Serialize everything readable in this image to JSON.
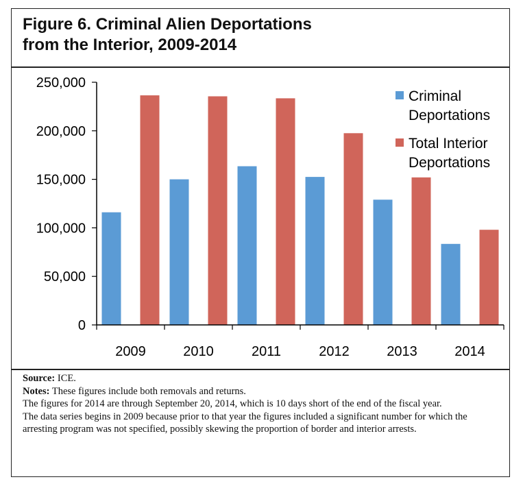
{
  "figure": {
    "title_line1": "Figure 6. Criminal Alien Deportations",
    "title_line2": "from the Interior, 2009-2014"
  },
  "notes": {
    "source_label": "Source:",
    "source_text": "ICE.",
    "notes_label": "Notes:",
    "notes_text": "These figures include both removals and returns.",
    "line2": "The figures for 2014 are through September 20, 2014, which is 10 days short of the end of the fiscal year.",
    "line3": "The data series begins in 2009 because prior to that year the figures included a significant number for which the arresting program was not specified, possibly skewing the proportion of border and interior arrests."
  },
  "colors": {
    "criminal": "#5b9bd5",
    "total": "#d0655a",
    "axis": "#000000"
  },
  "chart_data": {
    "type": "bar",
    "title": "Figure 6. Criminal Alien Deportations from the Interior, 2009-2014",
    "xlabel": "",
    "ylabel": "",
    "categories": [
      "2009",
      "2010",
      "2011",
      "2012",
      "2013",
      "2014"
    ],
    "series": [
      {
        "name": "Criminal Deportations",
        "legend_lines": [
          "Criminal",
          "Deportations"
        ],
        "color": "#5b9bd5",
        "values": [
          116000,
          150000,
          163500,
          152500,
          129000,
          83500
        ]
      },
      {
        "name": "Total Interior Deportations",
        "legend_lines": [
          "Total Interior",
          "Deportations"
        ],
        "color": "#d0655a",
        "values": [
          236500,
          235500,
          233500,
          197500,
          152000,
          98000
        ]
      }
    ],
    "ylim": [
      0,
      250000
    ],
    "yticks": [
      0,
      50000,
      100000,
      150000,
      200000,
      250000
    ],
    "ytick_labels": [
      "0",
      "50,000",
      "100,000",
      "150,000",
      "200,000",
      "250,000"
    ],
    "grid": false,
    "legend_position": "top-right"
  }
}
